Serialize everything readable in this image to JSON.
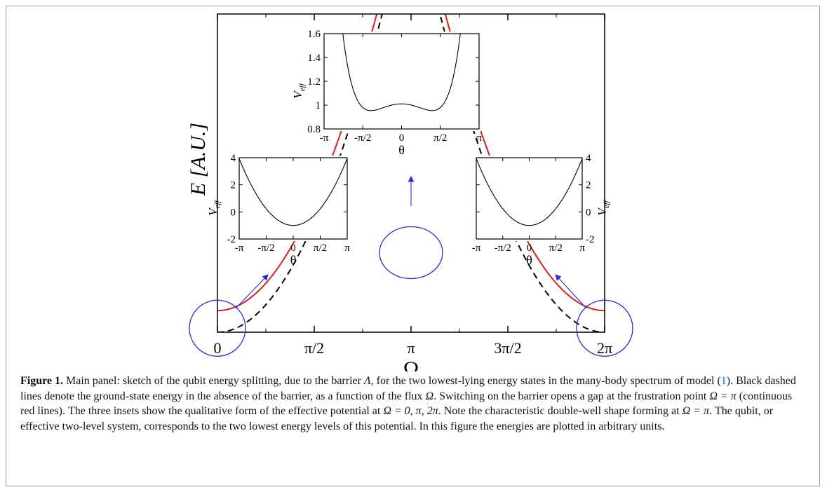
{
  "chart_data": {
    "type": "line",
    "main": {
      "xlabel": "Ω",
      "ylabel": "E  [A.U.]",
      "xticks": [
        "0",
        "π/2",
        "π",
        "3π/2",
        "2π"
      ],
      "xlim": [
        0,
        6.2832
      ],
      "ylim": [
        0,
        8.0
      ],
      "series": [
        {
          "style": "dashed",
          "color": "#000000",
          "formula": "Omega^2",
          "center": 0
        },
        {
          "style": "dashed",
          "color": "#000000",
          "formula": "(Omega-2pi)^2",
          "center": 6.2832
        },
        {
          "style": "solid",
          "color": "#d62020",
          "branch": "upper",
          "gap_half_width": 0.55
        },
        {
          "style": "solid",
          "color": "#d62020",
          "branch": "lower",
          "gap_half_width": 0.55
        }
      ],
      "annotations": [
        "circle at Ω=0",
        "circle at Ω=π",
        "circle at Ω=2π"
      ]
    },
    "insets": [
      {
        "position": "top-center",
        "xlabel": "θ",
        "ylabel": "V",
        "ylabel_sub": "eff",
        "xticks": [
          "-π",
          "-π/2",
          "0",
          "π/2",
          "π"
        ],
        "yticks": [
          "0.8",
          "1",
          "1.2",
          "1.4",
          "1.6"
        ],
        "xlim": [
          -3.1416,
          3.1416
        ],
        "ylim": [
          0.8,
          1.6
        ],
        "curve": {
          "type": "double-well",
          "a": 0.06,
          "b": 0.93,
          "c": 0.17
        }
      },
      {
        "position": "left",
        "xlabel": "θ",
        "ylabel": "V",
        "ylabel_sub": "eff",
        "xticks": [
          "-π",
          "-π/2",
          "0",
          "π/2",
          "π"
        ],
        "yticks": [
          "-2",
          "0",
          "2",
          "4"
        ],
        "xlim": [
          -3.1416,
          3.1416
        ],
        "ylim": [
          -2,
          4
        ],
        "curve": {
          "type": "parabola",
          "min": -1.0,
          "k": 0.5
        }
      },
      {
        "position": "right",
        "xlabel": "θ",
        "ylabel": "V",
        "ylabel_sub": "eff",
        "xticks": [
          "-π",
          "-π/2",
          "0",
          "π/2",
          "π"
        ],
        "yticks": [
          "-2",
          "0",
          "2",
          "4"
        ],
        "xlim": [
          -3.1416,
          3.1416
        ],
        "ylim": [
          -2,
          4
        ],
        "curve": {
          "type": "parabola",
          "min": -1.0,
          "k": 0.5
        }
      }
    ]
  },
  "caption": {
    "label": "Figure 1.",
    "text_a": " Main panel: sketch of the qubit energy splitting, due to the barrier ",
    "sym_lambda": "Λ",
    "text_b": ", for the two lowest-lying energy states in the many-body spectrum of model (",
    "ref": "1",
    "text_c": "). Black dashed lines denote the ground-state energy in the absence of the barrier, as a function of the flux ",
    "sym_omega": "Ω",
    "text_d": ". Switching on the barrier opens a gap at the frustration point ",
    "eq1": "Ω = π",
    "text_e": " (continuous red lines). The three insets show the qualitative form of the effective potential at ",
    "eq2": "Ω = 0,  π,  2π",
    "text_f": ". Note the characteristic double-well shape forming at ",
    "eq3": "Ω = π",
    "text_g": ". The qubit, or effective two-level system, corresponds to the two lowest energy levels of this potential. In this figure the energies are plotted in arbitrary units."
  }
}
